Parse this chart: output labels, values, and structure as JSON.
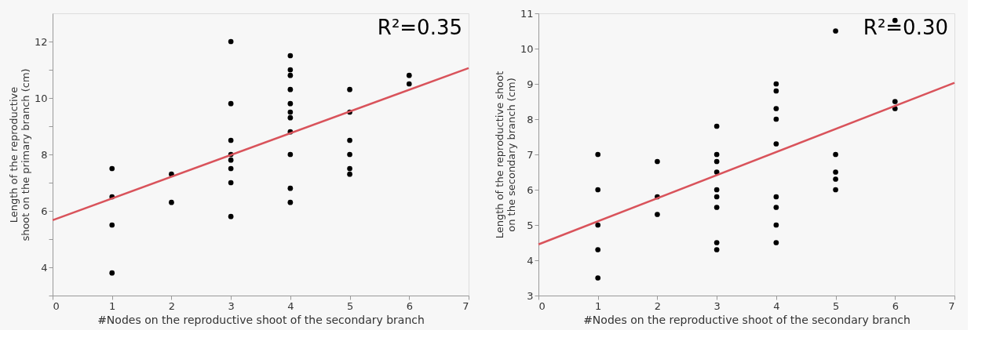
{
  "chart_data": [
    {
      "type": "scatter",
      "xlabel": "#Nodes on the reproductive shoot of the secondary branch",
      "ylabel": "Length of the reproductive shoot on the primary branch (cm)",
      "xlim": [
        0,
        7
      ],
      "xticks": [
        0,
        1,
        2,
        3,
        4,
        5,
        6,
        7
      ],
      "ylim": [
        3,
        13
      ],
      "yticks": [
        {
          "value": 3,
          "label": null
        },
        4,
        {
          "value": 5,
          "label": null
        },
        6,
        {
          "value": 7,
          "label": null
        },
        8,
        {
          "value": 9,
          "label": null
        },
        10,
        {
          "value": 11,
          "label": null
        },
        12
      ],
      "grid": false,
      "annotations": [
        "R²=0.35"
      ],
      "series": [
        {
          "marker": "circle",
          "color": "#000000",
          "x": [
            1,
            1,
            1,
            1,
            2,
            2,
            3,
            3,
            3,
            3,
            3,
            3,
            3,
            3,
            4,
            4,
            4,
            4,
            4,
            4,
            4,
            4,
            4,
            4,
            4,
            5,
            5,
            5,
            5,
            5,
            5,
            6,
            6
          ],
          "values": [
            7.5,
            6.5,
            5.5,
            3.8,
            7.3,
            6.3,
            12,
            9.8,
            8.5,
            8.0,
            7.8,
            7.5,
            7.0,
            5.8,
            11.5,
            11.0,
            10.8,
            10.3,
            9.8,
            9.5,
            9.3,
            8.8,
            8.0,
            6.8,
            6.3,
            10.3,
            9.5,
            8.5,
            8.0,
            7.5,
            7.3,
            10.8,
            10.5
          ]
        },
        {
          "type": "line",
          "color": "#d9535b",
          "x": [
            0,
            7
          ],
          "values": [
            5.67,
            11.06
          ]
        }
      ]
    },
    {
      "type": "scatter",
      "xlabel": "#Nodes on the reproductive shoot of the secondary branch",
      "ylabel": "Length of the reproductive shoot on the secondary branch (cm)",
      "xlim": [
        0,
        7
      ],
      "xticks": [
        0,
        1,
        2,
        3,
        4,
        5,
        6,
        7
      ],
      "ylim": [
        3,
        11
      ],
      "yticks": [
        3,
        4,
        5,
        6,
        7,
        8,
        9,
        10,
        11
      ],
      "grid": false,
      "annotations": [
        "R²=0.30"
      ],
      "series": [
        {
          "marker": "circle",
          "color": "#000000",
          "x": [
            1,
            1,
            1,
            1,
            1,
            2,
            2,
            2,
            3,
            3,
            3,
            3,
            3,
            3,
            3,
            3,
            3,
            4,
            4,
            4,
            4,
            4,
            4,
            4,
            4,
            4,
            5,
            5,
            5,
            5,
            5,
            6,
            6,
            6
          ],
          "values": [
            7.0,
            6.0,
            5.0,
            4.3,
            3.5,
            6.8,
            5.8,
            5.3,
            7.8,
            7.0,
            6.8,
            6.5,
            6.0,
            5.8,
            5.5,
            4.5,
            4.3,
            9.0,
            8.8,
            8.3,
            8.0,
            7.3,
            5.8,
            5.5,
            5.0,
            4.5,
            10.5,
            7.0,
            6.5,
            6.3,
            6.0,
            10.8,
            8.5,
            8.3
          ]
        },
        {
          "type": "line",
          "color": "#d9535b",
          "x": [
            0,
            7
          ],
          "values": [
            4.45,
            9.03
          ]
        }
      ]
    }
  ]
}
